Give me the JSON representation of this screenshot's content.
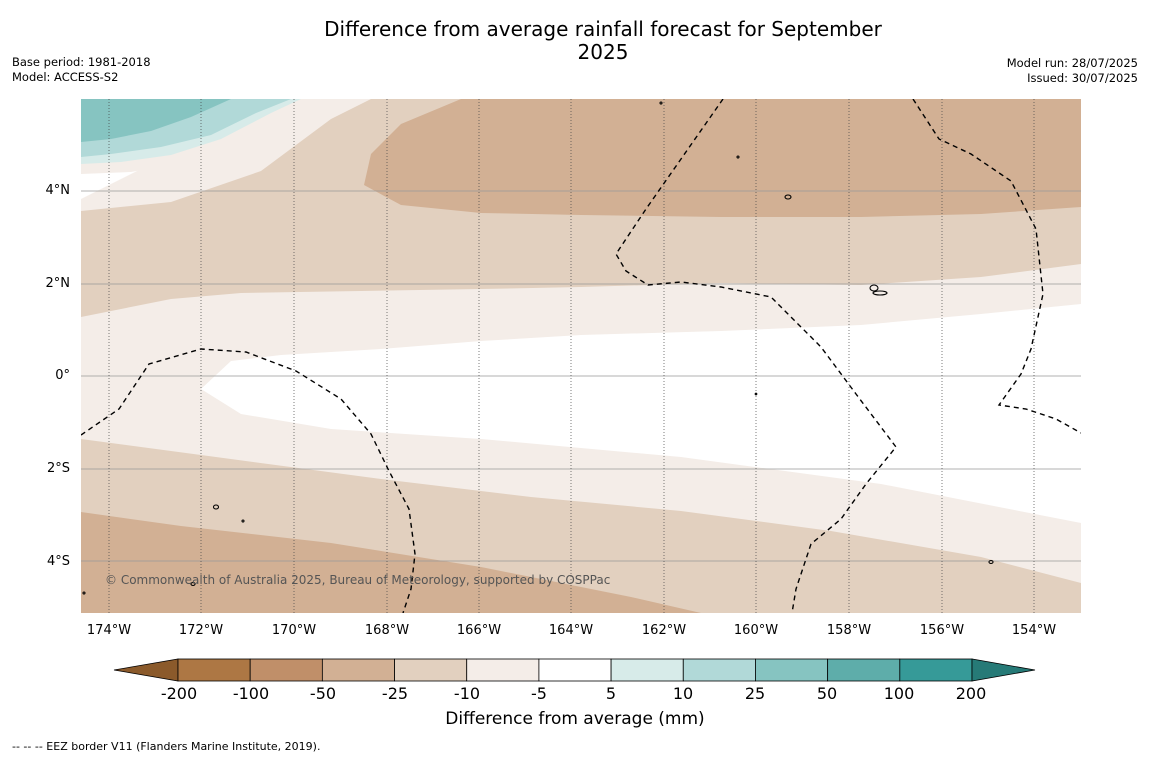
{
  "title": "Difference from average rainfall forecast for September 2025",
  "base_period": "Base period: 1981-2018",
  "model": "Model: ACCESS-S2",
  "model_run": "Model run: 28/07/2025",
  "issued": "Issued: 30/07/2025",
  "latitude_labels": [
    "4°N",
    "2°N",
    "0°",
    "2°S",
    "4°S"
  ],
  "longitude_labels": [
    "174°W",
    "172°W",
    "170°W",
    "168°W",
    "166°W",
    "164°W",
    "162°W",
    "160°W",
    "158°W",
    "156°W",
    "154°W"
  ],
  "copyright": "© Commonwealth of Australia 2025, Bureau of Meteorology, supported by COSPPac",
  "colorbar": {
    "ticks": [
      "-200",
      "-100",
      "-50",
      "-25",
      "-10",
      "-5",
      "5",
      "10",
      "25",
      "50",
      "100",
      "200"
    ],
    "colors": [
      "#8b5a2b",
      "#ad7744",
      "#c08f69",
      "#d2b094",
      "#e2d0bf",
      "#f4ede8",
      "#ffffff",
      "#d7ebe9",
      "#b1d9d8",
      "#86c4c1",
      "#5eadaa",
      "#369a98",
      "#267a77"
    ],
    "title": "Difference from average (mm)"
  },
  "footnote": "--  --  -- EEZ border V11 (Flanders Marine Institute, 2019)."
}
